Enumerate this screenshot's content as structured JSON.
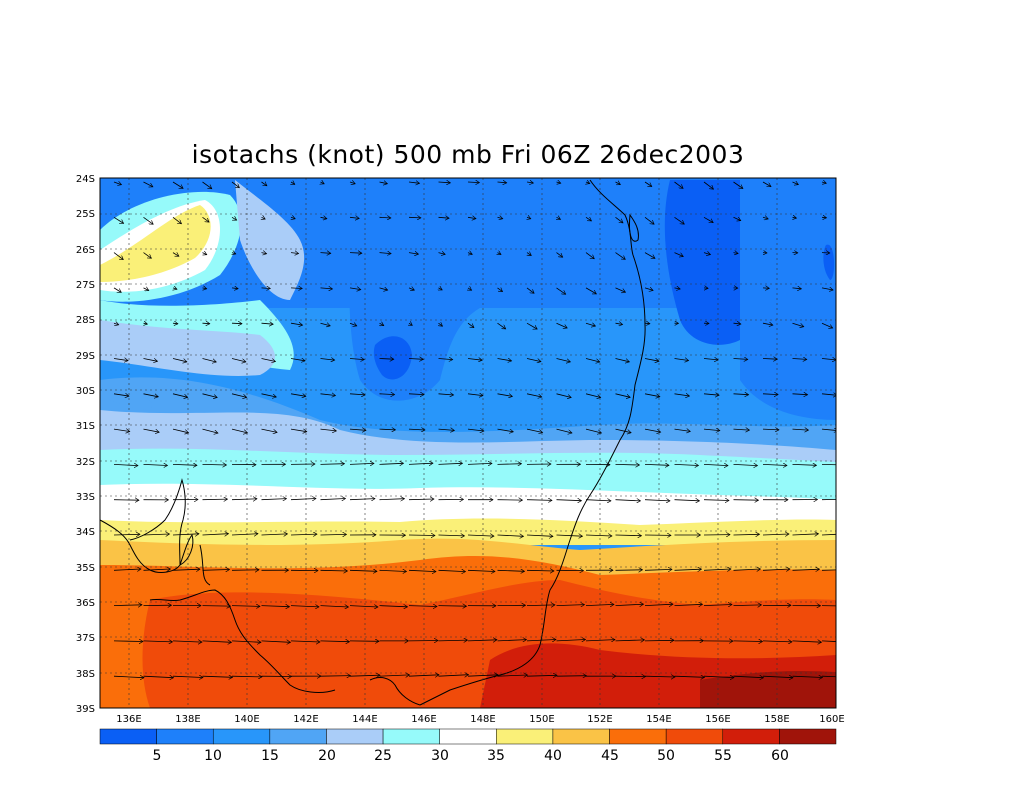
{
  "title": "isotachs (knot) 500 mb Fri 06Z 26dec2003",
  "latitude_labels": [
    "24S",
    "25S",
    "26S",
    "27S",
    "28S",
    "29S",
    "30S",
    "31S",
    "32S",
    "33S",
    "34S",
    "35S",
    "36S",
    "37S",
    "38S",
    "39S"
  ],
  "longitude_labels": [
    "136E",
    "138E",
    "140E",
    "142E",
    "144E",
    "146E",
    "148E",
    "150E",
    "152E",
    "154E",
    "156E",
    "158E",
    "160E"
  ],
  "colorbar": {
    "colors": [
      "#0a5ff5",
      "#1e80fa",
      "#2896fa",
      "#50a5f5",
      "#aacdf8",
      "#96fafa",
      "#ffffff",
      "#faf078",
      "#fac346",
      "#fa6e0a",
      "#f04b0a",
      "#d21e0a",
      "#a0140a"
    ],
    "labels": [
      "5",
      "10",
      "15",
      "20",
      "25",
      "30",
      "35",
      "40",
      "45",
      "50",
      "55",
      "60"
    ]
  },
  "chart_data": {
    "type": "heatmap",
    "title": "isotachs (knot) 500 mb Fri 06Z 26dec2003",
    "variable": "wind speed (isotachs)",
    "units": "knot",
    "level": "500 mb",
    "valid_time": "Fri 06Z 26dec2003",
    "lon_range": [
      135,
      160
    ],
    "lat_range": [
      -39,
      -24
    ],
    "contour_levels": [
      5,
      10,
      15,
      20,
      25,
      30,
      35,
      40,
      45,
      50,
      55,
      60
    ],
    "speed_bands_by_latitude": [
      {
        "lat": "24S",
        "typical_speed": "5-15 knot"
      },
      {
        "lat": "28S",
        "typical_speed": "5-20 knot"
      },
      {
        "lat": "31S",
        "typical_speed": "10-25 knot"
      },
      {
        "lat": "33S",
        "typical_speed": "30-35 knot"
      },
      {
        "lat": "34S",
        "typical_speed": "35-45 knot"
      },
      {
        "lat": "36S",
        "typical_speed": "45-55 knot"
      },
      {
        "lat": "38S",
        "typical_speed": "50-60 knot"
      }
    ],
    "features": [
      "wind vectors plotted every 1 degree latitude, every 1 degree longitude",
      "coastline of south-east Australia",
      "jet maximum >55 knot near 150E-160E, 38S-39S",
      "local minimum <5 knot near 145E 29S"
    ]
  }
}
